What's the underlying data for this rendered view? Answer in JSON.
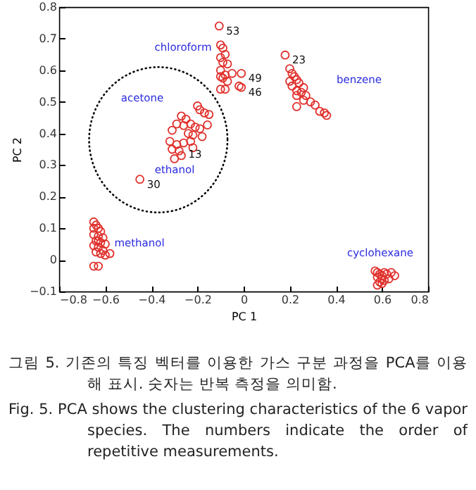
{
  "chart_data": {
    "type": "scatter",
    "xlabel": "PC 1",
    "ylabel": "PC 2",
    "xlim": [
      -0.8,
      0.8
    ],
    "ylim": [
      -0.1,
      0.8
    ],
    "xticks": [
      -0.8,
      -0.6,
      -0.4,
      -0.2,
      0,
      0.2,
      0.4,
      0.6,
      0.8
    ],
    "yticks": [
      -0.1,
      0,
      0.1,
      0.2,
      0.3,
      0.4,
      0.5,
      0.6,
      0.7,
      0.8
    ],
    "grid": false,
    "marker": "circle",
    "x": [
      -0.106,
      -0.1,
      -0.09,
      -0.08,
      -0.1,
      -0.09,
      -0.07,
      -0.1,
      -0.08,
      -0.1,
      -0.07,
      -0.09,
      -0.05,
      -0.01,
      -0.02,
      -0.01,
      -0.1,
      -0.08,
      0.18,
      0.2,
      0.21,
      0.22,
      0.23,
      0.2,
      0.24,
      0.21,
      0.26,
      0.23,
      0.25,
      0.27,
      0.23,
      0.26,
      0.29,
      0.31,
      0.23,
      0.33,
      0.35,
      0.36,
      -0.2,
      -0.19,
      -0.17,
      -0.15,
      -0.27,
      -0.25,
      -0.29,
      -0.26,
      -0.23,
      -0.21,
      -0.19,
      -0.31,
      -0.24,
      -0.22,
      -0.18,
      -0.157,
      -0.32,
      -0.29,
      -0.26,
      -0.23,
      -0.31,
      -0.28,
      -0.22,
      -0.27,
      -0.3,
      -0.45,
      -0.65,
      -0.64,
      -0.63,
      -0.62,
      -0.65,
      -0.63,
      -0.61,
      -0.64,
      -0.62,
      -0.6,
      -0.65,
      -0.63,
      -0.61,
      -0.64,
      -0.62,
      -0.6,
      -0.58,
      -0.65,
      -0.63,
      -0.65,
      -0.63,
      0.57,
      0.58,
      0.59,
      0.6,
      0.61,
      0.62,
      0.58,
      0.6,
      0.655,
      0.64,
      0.59,
      0.61,
      0.63,
      0.58,
      0.6
    ],
    "values": [
      0.74,
      0.68,
      0.67,
      0.65,
      0.64,
      0.625,
      0.62,
      0.6,
      0.585,
      0.58,
      0.565,
      0.575,
      0.59,
      0.59,
      0.55,
      0.546,
      0.54,
      0.54,
      0.648,
      0.605,
      0.59,
      0.58,
      0.57,
      0.565,
      0.56,
      0.55,
      0.545,
      0.535,
      0.53,
      0.52,
      0.52,
      0.505,
      0.5,
      0.49,
      0.485,
      0.47,
      0.465,
      0.457,
      0.487,
      0.475,
      0.465,
      0.46,
      0.455,
      0.445,
      0.43,
      0.425,
      0.43,
      0.42,
      0.415,
      0.41,
      0.4,
      0.395,
      0.39,
      0.427,
      0.375,
      0.365,
      0.37,
      0.375,
      0.35,
      0.345,
      0.355,
      0.33,
      0.32,
      0.255,
      0.12,
      0.11,
      0.1,
      0.09,
      0.08,
      0.075,
      0.07,
      0.06,
      0.055,
      0.05,
      0.045,
      0.04,
      0.03,
      0.025,
      0.02,
      0.015,
      0.02,
      -0.02,
      -0.02,
      0.1,
      0.06,
      -0.035,
      -0.04,
      -0.045,
      -0.05,
      -0.04,
      -0.045,
      -0.055,
      -0.06,
      -0.05,
      -0.04,
      -0.07,
      -0.065,
      -0.06,
      -0.08,
      -0.075
    ],
    "color": "#e0302c",
    "annotations": [
      "chloroform",
      "benzene",
      "acetone",
      "ethanol",
      "methanol",
      "cyclohexane",
      {
        "text": "53",
        "x": -0.106,
        "y": 0.74
      },
      {
        "text": "23",
        "x": 0.18,
        "y": 0.648
      },
      {
        "text": "49",
        "x": -0.01,
        "y": 0.59
      },
      {
        "text": "46",
        "x": -0.01,
        "y": 0.546
      },
      {
        "text": "13",
        "x": -0.27,
        "y": 0.35
      },
      {
        "text": "30",
        "x": -0.45,
        "y": 0.255
      },
      "그림 5. 기존의 특징 벡터를 이용한 가스 구분 과정을 PCA를 이용해 표시. 숫자는 반복 측정을 의미함.",
      "Fig. 5. PCA shows the clustering characteristics of the 6 vapor species. The numbers indicate the order of repetitive measurements."
    ]
  }
}
